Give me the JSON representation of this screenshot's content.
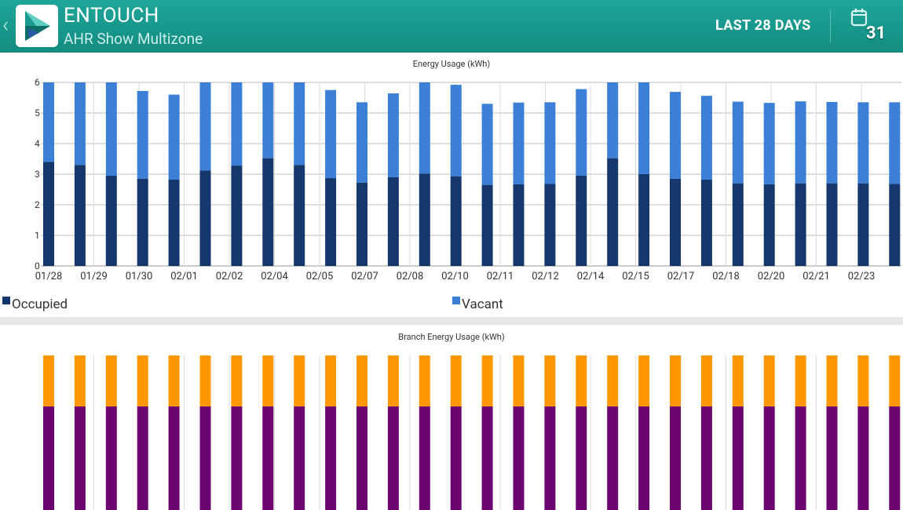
{
  "header": {
    "app_name": "ENTOUCH",
    "site_name": "AHR Show Multizone",
    "date_range": "LAST 28 DAYS",
    "calendar_day": "31",
    "back_glyph": "‹",
    "icons": [
      "back-chevron-icon",
      "entouch-logo-icon",
      "calendar-icon"
    ]
  },
  "colors": {
    "header": "#17978b",
    "occupied": "#15376b",
    "vacant": "#3b7fd6",
    "branch_top": "#ff9800",
    "branch_bottom": "#6b0570"
  },
  "energy_chart": {
    "title": "Energy Usage (kWh)",
    "legend": {
      "occupied": "Occupied",
      "vacant": "Vacant"
    }
  },
  "branch_chart": {
    "title": "Branch Energy Usage (kWh)"
  },
  "chart_data": [
    {
      "type": "bar",
      "stacked": true,
      "title": "Energy Usage (kWh)",
      "ylim": [
        0,
        6
      ],
      "y_ticks": [
        "0",
        "1",
        "2",
        "3",
        "4",
        "5",
        "6"
      ],
      "x_tick_labels": [
        "01/28",
        "01/29",
        "01/30",
        "02/01",
        "02/02",
        "02/04",
        "02/05",
        "02/07",
        "02/08",
        "02/10",
        "02/11",
        "02/12",
        "02/14",
        "02/15",
        "02/17",
        "02/18",
        "02/20",
        "02/21",
        "02/23"
      ],
      "series": [
        {
          "name": "Occupied",
          "values": [
            3.4,
            3.3,
            2.95,
            2.85,
            2.82,
            3.12,
            3.28,
            3.52,
            3.3,
            2.87,
            2.72,
            2.9,
            3.02,
            2.93,
            2.65,
            2.67,
            2.68,
            2.95,
            3.52,
            3.0,
            2.85,
            2.82,
            2.7,
            2.67,
            2.7,
            2.7,
            2.7,
            2.68
          ]
        },
        {
          "name": "Vacant",
          "values": [
            2.6,
            2.7,
            3.05,
            2.87,
            2.78,
            2.88,
            2.72,
            2.48,
            2.7,
            2.88,
            2.63,
            2.74,
            2.98,
            2.99,
            2.65,
            2.67,
            2.67,
            2.83,
            2.48,
            3.0,
            2.84,
            2.74,
            2.67,
            2.66,
            2.68,
            2.66,
            2.65,
            2.67
          ]
        }
      ],
      "legend_position": "bottom",
      "grid": true
    },
    {
      "type": "bar",
      "stacked": true,
      "title": "Branch Energy Usage (kWh)",
      "series": [
        {
          "name": "",
          "values": [
            0.33,
            0.33,
            0.33,
            0.33,
            0.33,
            0.33,
            0.33,
            0.33,
            0.33,
            0.33,
            0.33,
            0.33,
            0.33,
            0.33,
            0.33,
            0.33,
            0.33,
            0.33,
            0.33,
            0.33,
            0.33,
            0.33,
            0.33,
            0.33,
            0.33,
            0.33,
            0.33,
            0.33
          ]
        },
        {
          "name": "",
          "values": [
            0.67,
            0.67,
            0.67,
            0.67,
            0.67,
            0.67,
            0.67,
            0.67,
            0.67,
            0.67,
            0.67,
            0.67,
            0.67,
            0.67,
            0.67,
            0.67,
            0.67,
            0.67,
            0.67,
            0.67,
            0.67,
            0.67,
            0.67,
            0.67,
            0.67,
            0.67,
            0.67,
            0.67
          ]
        }
      ],
      "grid": true
    }
  ]
}
